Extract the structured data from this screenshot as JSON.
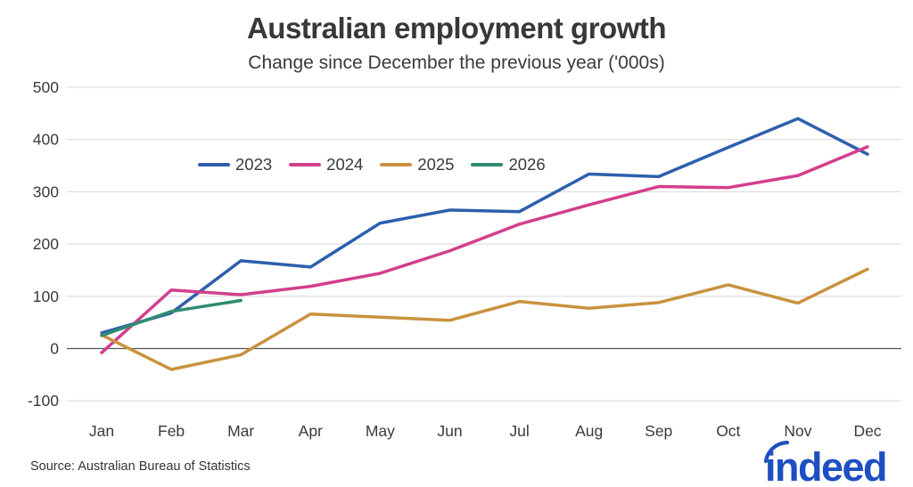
{
  "header": {
    "title": "Australian employment growth",
    "subtitle": "Change since December the previous year ('000s)"
  },
  "footer": {
    "source": "Source: Australian Bureau of Statistics",
    "logo_text": "indeed",
    "logo_color": "#1e4fc2"
  },
  "colors": {
    "text": "#3a3a3a",
    "gridline": "#dcdcdc",
    "zero_line": "#555555"
  },
  "chart_data": {
    "type": "line",
    "title": "Australian employment growth",
    "subtitle": "Change since December the previous year ('000s)",
    "x": [
      "Jan",
      "Feb",
      "Mar",
      "Apr",
      "May",
      "Jun",
      "Jul",
      "Aug",
      "Sep",
      "Oct",
      "Nov",
      "Dec"
    ],
    "series": [
      {
        "name": "2023",
        "color": "#2d5fad",
        "values": [
          30,
          68,
          168,
          156,
          240,
          265,
          262,
          334,
          329,
          385,
          440,
          372
        ]
      },
      {
        "name": "2024",
        "color": "#d23f8c",
        "values": [
          -8,
          112,
          103,
          119,
          144,
          187,
          238,
          275,
          310,
          308,
          331,
          386
        ]
      },
      {
        "name": "2025",
        "color": "#c9923e",
        "values": [
          26,
          -40,
          -12,
          66,
          60,
          54,
          90,
          77,
          88,
          122,
          87,
          152
        ]
      },
      {
        "name": "2026",
        "color": "#2f8b71",
        "values": [
          25,
          71,
          92,
          null,
          null,
          null,
          null,
          null,
          null,
          null,
          null,
          null
        ]
      }
    ],
    "ylim": [
      -100,
      500
    ],
    "y_ticks": [
      500,
      400,
      300,
      200,
      100,
      0,
      -100
    ],
    "xlabel": "",
    "ylabel": "",
    "grid": "horizontal",
    "zero_line": true,
    "legend_position": "upper-left-inside"
  }
}
